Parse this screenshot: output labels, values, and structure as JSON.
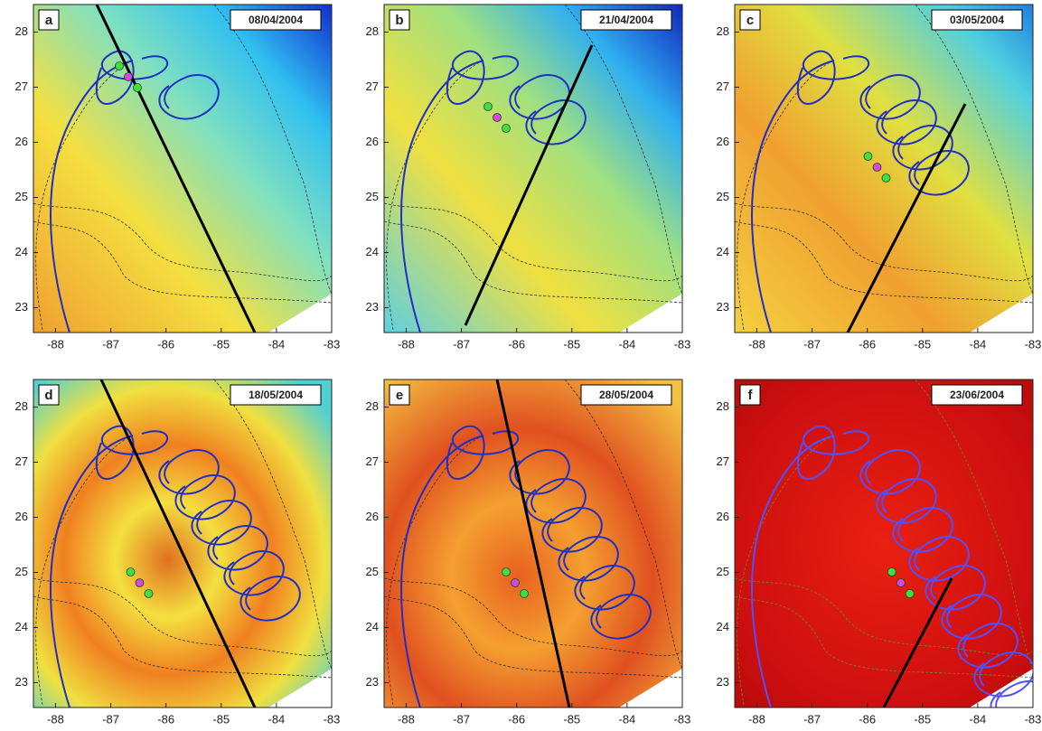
{
  "axes": {
    "xlim": [
      -88.4,
      -83
    ],
    "ylim": [
      22.55,
      28.5
    ],
    "xticks": [
      -88,
      -87,
      -86,
      -85,
      -84,
      -83
    ],
    "yticks": [
      23,
      24,
      25,
      26,
      27,
      28
    ]
  },
  "panels": [
    {
      "letter": "a",
      "date": "08/04/2004"
    },
    {
      "letter": "b",
      "date": "21/04/2004"
    },
    {
      "letter": "c",
      "date": "03/05/2004"
    },
    {
      "letter": "d",
      "date": "18/05/2004"
    },
    {
      "letter": "e",
      "date": "28/05/2004"
    },
    {
      "letter": "f",
      "date": "23/06/2004"
    }
  ]
}
